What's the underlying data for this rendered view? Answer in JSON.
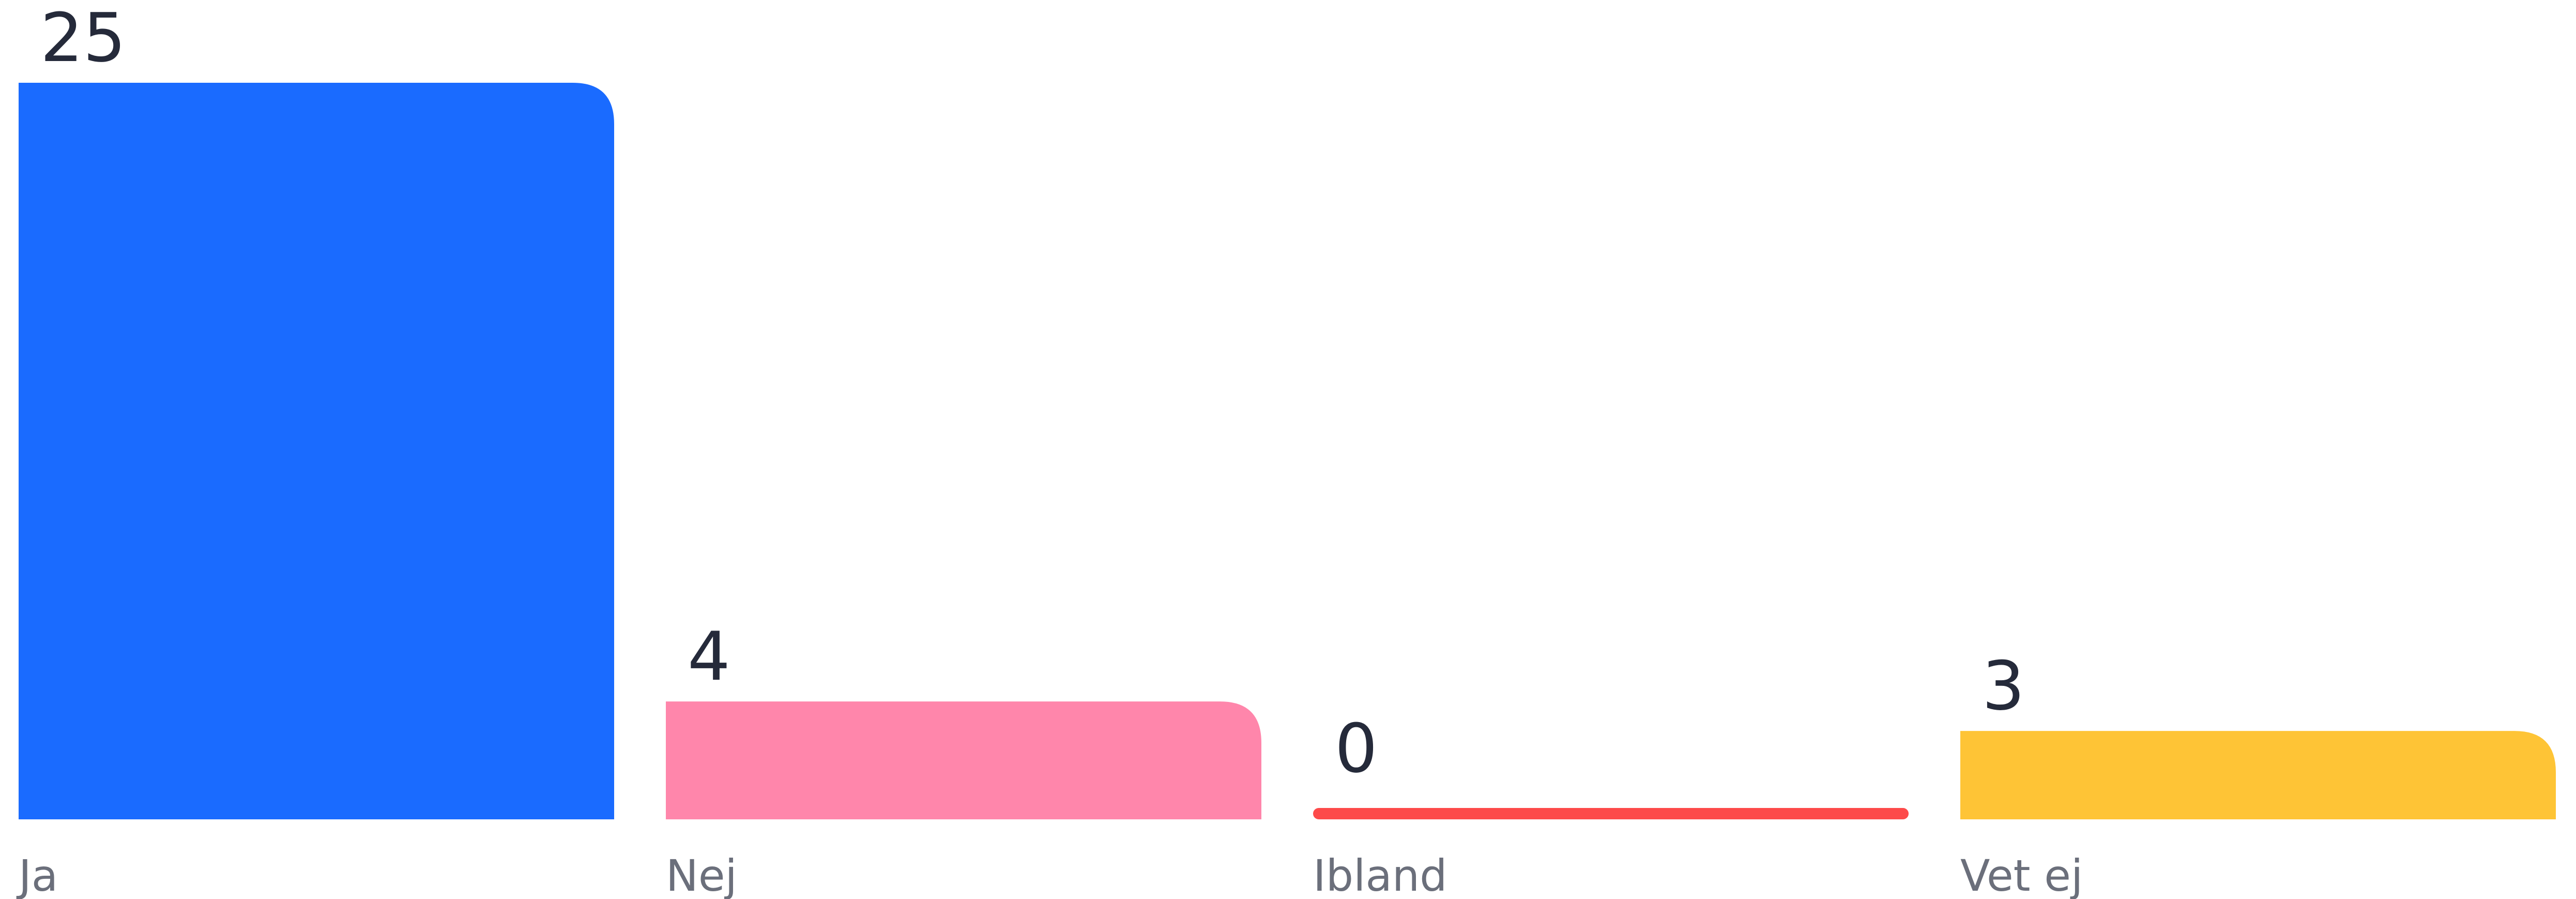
{
  "chart_data": {
    "type": "bar",
    "categories": [
      "Ja",
      "Nej",
      "Ibland",
      "Vet ej"
    ],
    "values": [
      25,
      4,
      0,
      3
    ],
    "colors": [
      "#1a6bff",
      "#ff86ab",
      "#fd4a4a",
      "#fec436"
    ],
    "title": "",
    "xlabel": "",
    "ylabel": "",
    "ylim": [
      0,
      25
    ],
    "grid": false,
    "legend": "none",
    "data_labels": true
  }
}
